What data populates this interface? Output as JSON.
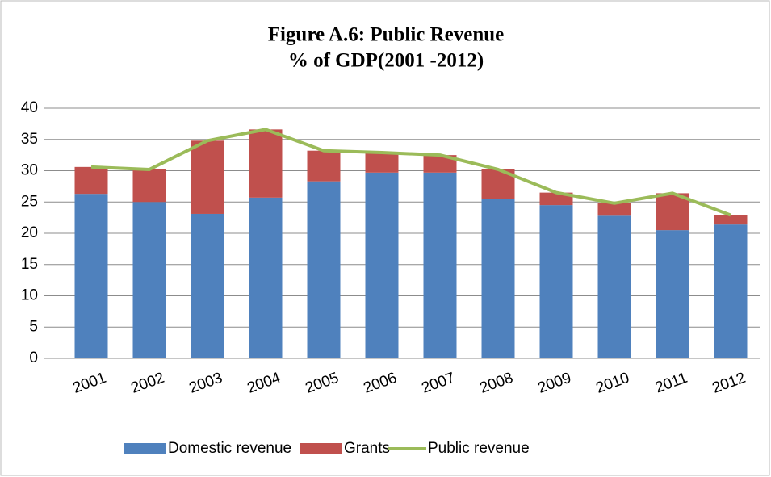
{
  "chart_data": {
    "type": "stacked-bar-line",
    "title": "Figure A.6: Public Revenue",
    "subtitle": "% of GDP(2001 -2012)",
    "categories": [
      "2001",
      "2002",
      "2003",
      "2004",
      "2005",
      "2006",
      "2007",
      "2008",
      "2009",
      "2010",
      "2011",
      "2012"
    ],
    "series": [
      {
        "name": "Domestic revenue",
        "color": "#4f81bd",
        "kind": "bar",
        "values": [
          26.3,
          25.0,
          23.1,
          25.7,
          28.3,
          29.7,
          29.7,
          25.5,
          24.5,
          22.8,
          20.5,
          21.4
        ]
      },
      {
        "name": "Grants",
        "color": "#c0504d",
        "kind": "bar",
        "values": [
          4.3,
          5.2,
          11.7,
          10.9,
          4.9,
          3.2,
          2.8,
          4.7,
          2.0,
          2.0,
          5.9,
          1.5
        ]
      },
      {
        "name": "Public revenue",
        "color": "#9bbb59",
        "kind": "line",
        "values": [
          30.6,
          30.2,
          34.8,
          36.6,
          33.2,
          32.9,
          32.5,
          30.2,
          26.5,
          24.8,
          26.4,
          22.9
        ]
      }
    ],
    "ylim": [
      0,
      40
    ],
    "yticks": [
      0,
      5,
      10,
      15,
      20,
      25,
      30,
      35,
      40
    ],
    "grid": true,
    "legend": "bottom"
  }
}
